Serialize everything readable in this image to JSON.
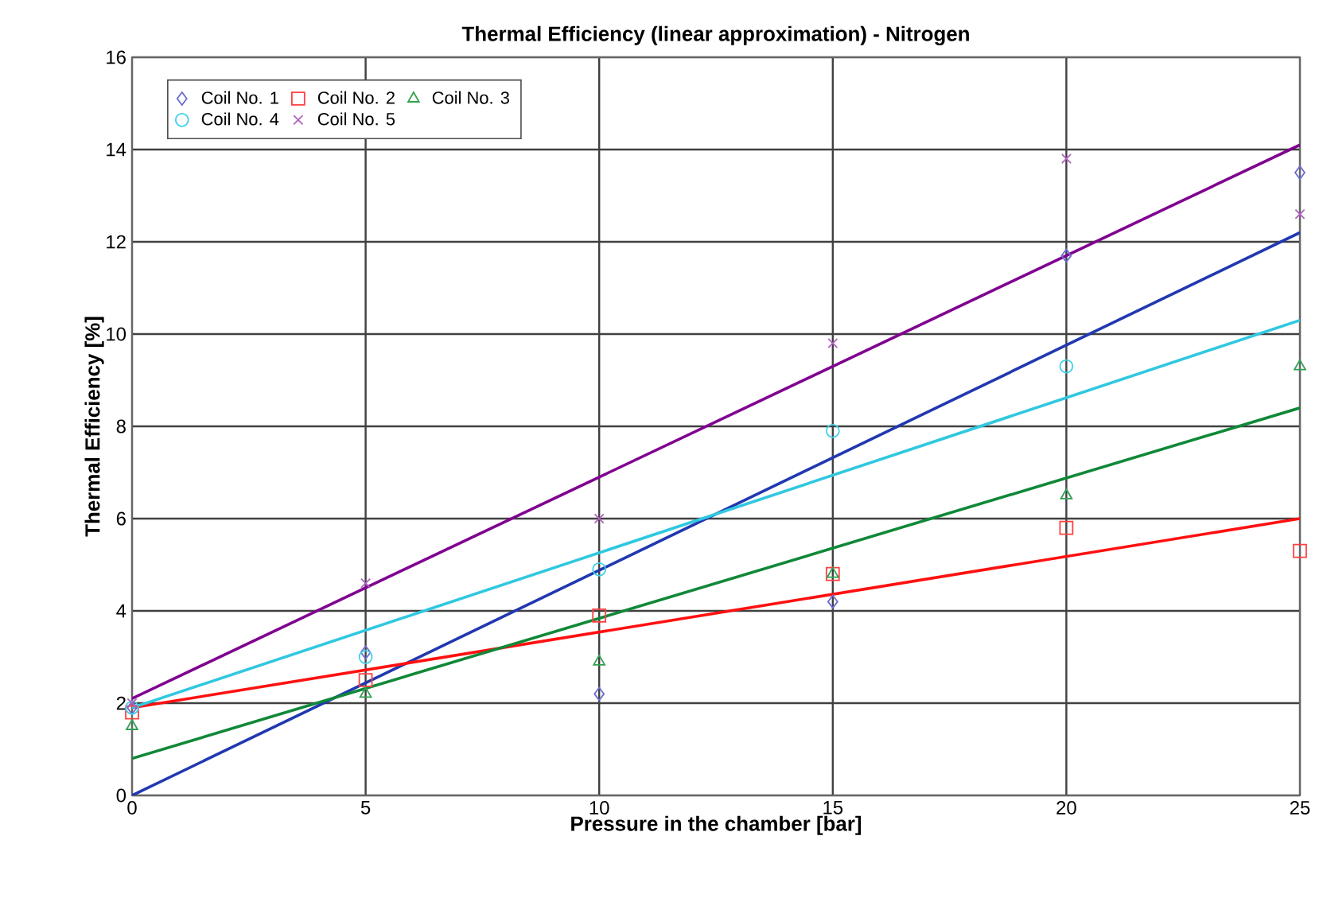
{
  "chart_data": {
    "type": "scatter",
    "title": "Thermal Efficiency (linear approximation) -  Nitrogen",
    "xlabel": "Pressure in the chamber [bar]",
    "ylabel": "Thermal Efficiency [%]",
    "xlim": [
      0,
      25
    ],
    "xticks": [
      0,
      5,
      10,
      15,
      20,
      25
    ],
    "ylim": [
      0,
      16
    ],
    "yticks": [
      0,
      2,
      4,
      6,
      8,
      10,
      12,
      14,
      16
    ],
    "grid": true,
    "legend": "top left",
    "series": [
      {
        "name": "Coil No. 1",
        "marker": "diamond",
        "color": "#6a6ad0",
        "x": [
          0,
          5,
          10,
          15,
          20,
          25
        ],
        "values": [
          1.9,
          3.1,
          2.2,
          4.2,
          11.7,
          13.5
        ]
      },
      {
        "name": "Coil No. 2",
        "marker": "square",
        "color": "#ff4040",
        "x": [
          0,
          5,
          10,
          15,
          20,
          25
        ],
        "values": [
          1.8,
          2.5,
          3.9,
          4.8,
          5.8,
          5.3
        ]
      },
      {
        "name": "Coil No. 3",
        "marker": "triangle",
        "color": "#30a050",
        "x": [
          0,
          5,
          10,
          15,
          20,
          25
        ],
        "values": [
          1.5,
          2.2,
          2.9,
          4.8,
          6.5,
          9.3
        ]
      },
      {
        "name": "Coil No. 4",
        "marker": "circle",
        "color": "#40d0e8",
        "x": [
          0,
          5,
          10,
          15,
          20
        ],
        "values": [
          1.9,
          3.0,
          4.9,
          7.9,
          9.3
        ]
      },
      {
        "name": "Coil No. 5",
        "marker": "cross",
        "color": "#b060c0",
        "x": [
          0,
          5,
          10,
          15,
          20,
          25
        ],
        "values": [
          2.0,
          4.6,
          6.0,
          9.8,
          13.8,
          12.6
        ]
      },
      {
        "type": "line",
        "color": "#2038b0",
        "x": [
          0,
          25
        ],
        "values": [
          0.0,
          12.2
        ]
      },
      {
        "type": "line",
        "color": "#ff1010",
        "x": [
          0,
          25
        ],
        "values": [
          1.9,
          6.0
        ]
      },
      {
        "type": "line",
        "color": "#108838",
        "x": [
          0,
          25
        ],
        "values": [
          0.8,
          8.4
        ]
      },
      {
        "type": "line",
        "color": "#30c8e0",
        "x": [
          0,
          25
        ],
        "values": [
          1.9,
          10.3
        ]
      },
      {
        "type": "line",
        "color": "#800090",
        "x": [
          0,
          25
        ],
        "values": [
          2.1,
          14.1
        ]
      }
    ]
  }
}
